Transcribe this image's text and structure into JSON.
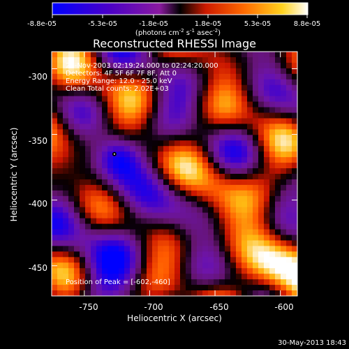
{
  "colorbar": {
    "ticks": [
      "-8.8e-05",
      "-5.3e-05",
      "-1.8e-05",
      "1.8e-05",
      "5.3e-05",
      "8.8e-05"
    ],
    "units_main": "(photons cm",
    "units_exp1": "-2",
    "units_mid": " s",
    "units_exp2": "-1",
    "units_end": " asec",
    "units_exp3": "-2",
    "units_close": ")",
    "colors": [
      "#0000ff",
      "#4a00c8",
      "#8a1aa0",
      "#000000",
      "#cc1a00",
      "#ff6a00",
      "#ffd21e",
      "#ffffff"
    ]
  },
  "plot": {
    "title": "Reconstructed RHESSI Image",
    "info_lines": [
      "26-Nov-2003 02:19:24.000 to 02:24:20.000",
      "Detectors: 4F 5F 6F 7F 8F, Att 0",
      "Energy Range: 12.0 - 25.0 keV",
      "Clean     Total counts: 2.02E+03"
    ],
    "peak_label": "Position of Peak = [-602,-460]",
    "xlabel": "Heliocentric X (arcsec)",
    "ylabel": "Heliocentric Y (arcsec)",
    "xlim": [
      -775,
      -587
    ],
    "ylim": [
      -473,
      -287
    ],
    "xticks": [
      "-750",
      "-700",
      "-650",
      "-600"
    ],
    "xtick_values": [
      -750,
      -700,
      -650,
      -600
    ],
    "yticks": [
      "-300",
      "-350",
      "-400",
      "-450"
    ],
    "ytick_values": [
      -300,
      -350,
      -400,
      -450
    ],
    "peak_position": [
      -602,
      -460
    ],
    "min_marker_position": [
      -727,
      -365
    ]
  },
  "footer": {
    "date": "30-May-2013 18:43"
  }
}
